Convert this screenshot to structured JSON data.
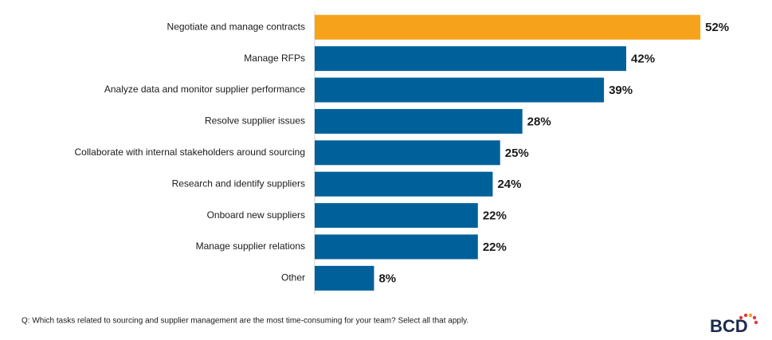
{
  "chart_data": {
    "type": "bar",
    "orientation": "horizontal",
    "categories": [
      "Negotiate and manage contracts",
      "Manage RFPs",
      "Analyze data and monitor supplier performance",
      "Resolve supplier issues",
      "Collaborate with internal stakeholders around sourcing",
      "Research and identify suppliers",
      "Onboard new suppliers",
      "Manage supplier relations",
      "Other"
    ],
    "values": [
      52,
      42,
      39,
      28,
      25,
      24,
      22,
      22,
      8
    ],
    "value_labels": [
      "52%",
      "42%",
      "39%",
      "28%",
      "25%",
      "24%",
      "22%",
      "22%",
      "8%"
    ],
    "colors": [
      "#f7a21b",
      "#00619a",
      "#00619a",
      "#00619a",
      "#00619a",
      "#00619a",
      "#00619a",
      "#00619a",
      "#00619a"
    ],
    "footnote": "Q: Which tasks related to sourcing and supplier management are the most time-consuming for your team? Select all that apply.",
    "logo": "BCD"
  }
}
